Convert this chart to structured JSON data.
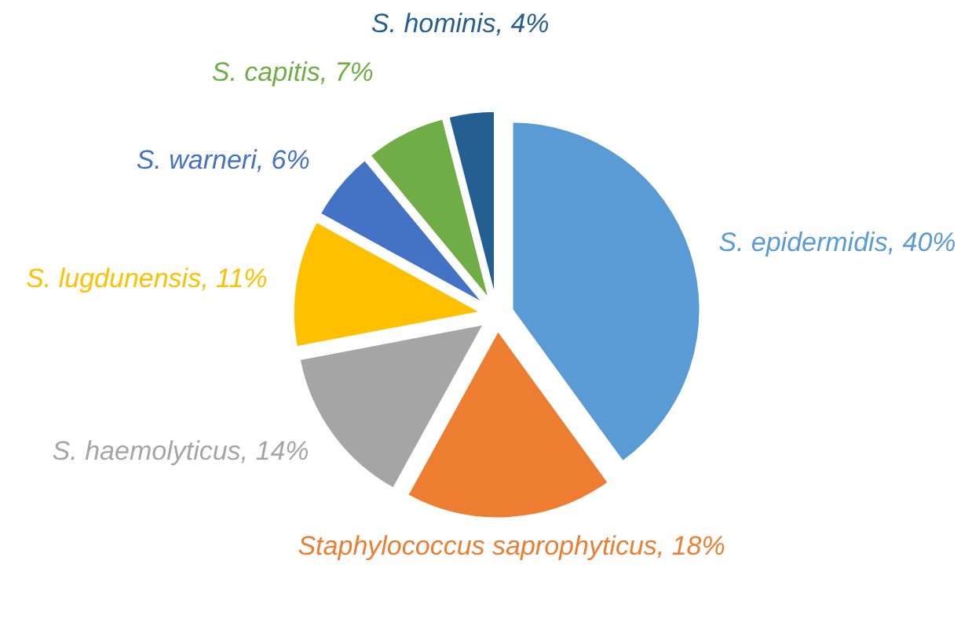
{
  "chart_data": {
    "type": "pie",
    "categories": [
      "S. epidermidis",
      "Staphylococcus saprophyticus",
      "S. haemolyticus",
      "S. lugdunensis",
      "S. warneri",
      "S. capitis",
      "S. hominis"
    ],
    "values": [
      40,
      18,
      14,
      11,
      6,
      7,
      4
    ],
    "value_labels": [
      "40%",
      "18%",
      "14%",
      "11%",
      "6%",
      "7%",
      "4%"
    ],
    "colors": [
      "#5b9bd5",
      "#ed7d31",
      "#a5a5a5",
      "#ffc000",
      "#4472c4",
      "#70ad47",
      "#255e91"
    ]
  }
}
